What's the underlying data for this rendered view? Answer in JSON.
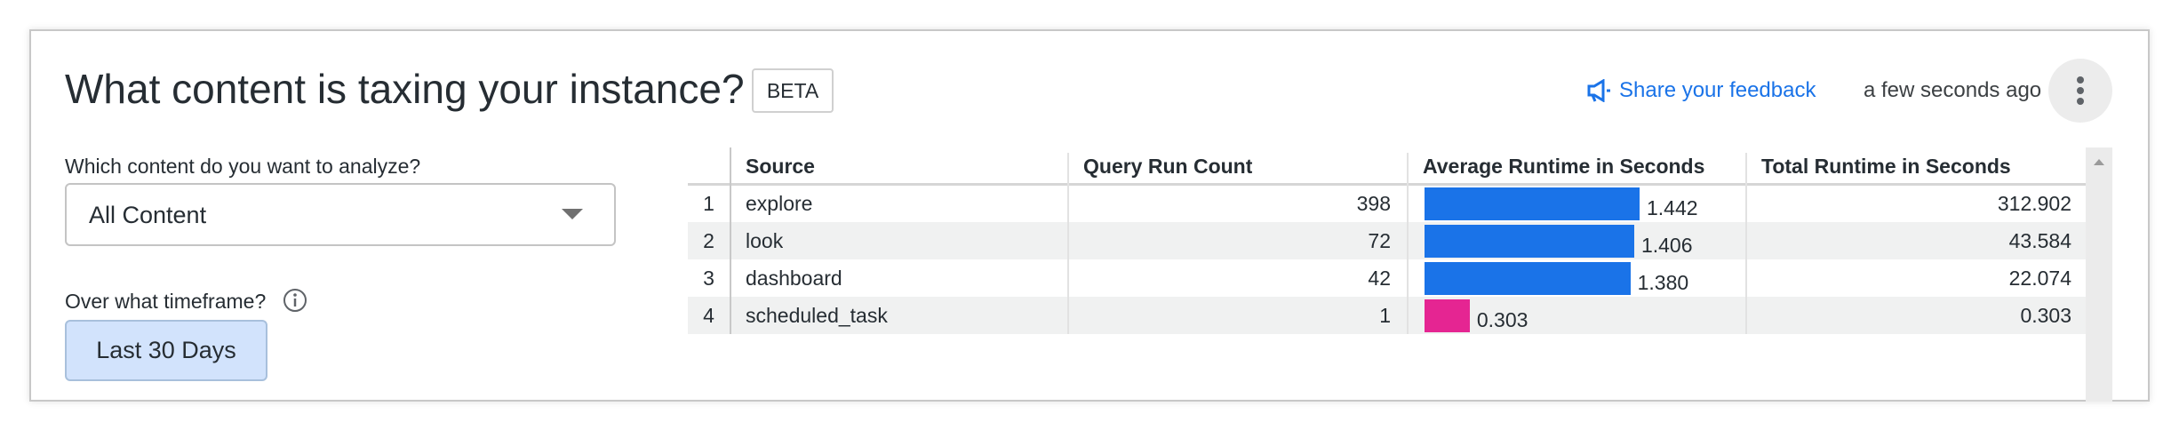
{
  "header": {
    "title": "What content is taxing your instance?",
    "badge": "BETA",
    "feedback": "Share your feedback",
    "updated": "a few seconds ago"
  },
  "filters": {
    "content": {
      "label": "Which content do you want to analyze?",
      "value": "All Content"
    },
    "timeframe": {
      "label": "Over what timeframe?",
      "value": "Last 30 Days"
    }
  },
  "table": {
    "columns": [
      "Source",
      "Query Run Count",
      "Average Runtime in Seconds",
      "Total Runtime in Seconds"
    ],
    "rows": [
      {
        "index": 1,
        "source": "explore",
        "query_run_count": 398,
        "average_runtime": 1.442,
        "total_runtime": 312.902,
        "bar_color": "#1a73e8"
      },
      {
        "index": 2,
        "source": "look",
        "query_run_count": 72,
        "average_runtime": 1.406,
        "total_runtime": 43.584,
        "bar_color": "#1a73e8"
      },
      {
        "index": 3,
        "source": "dashboard",
        "query_run_count": 42,
        "average_runtime": 1.38,
        "average_runtime_label": "1.380",
        "total_runtime": 22.074,
        "bar_color": "#1a73e8"
      },
      {
        "index": 4,
        "source": "scheduled_task",
        "query_run_count": 1,
        "average_runtime": 0.303,
        "total_runtime": 0.303,
        "bar_color": "#e52592"
      }
    ]
  }
}
